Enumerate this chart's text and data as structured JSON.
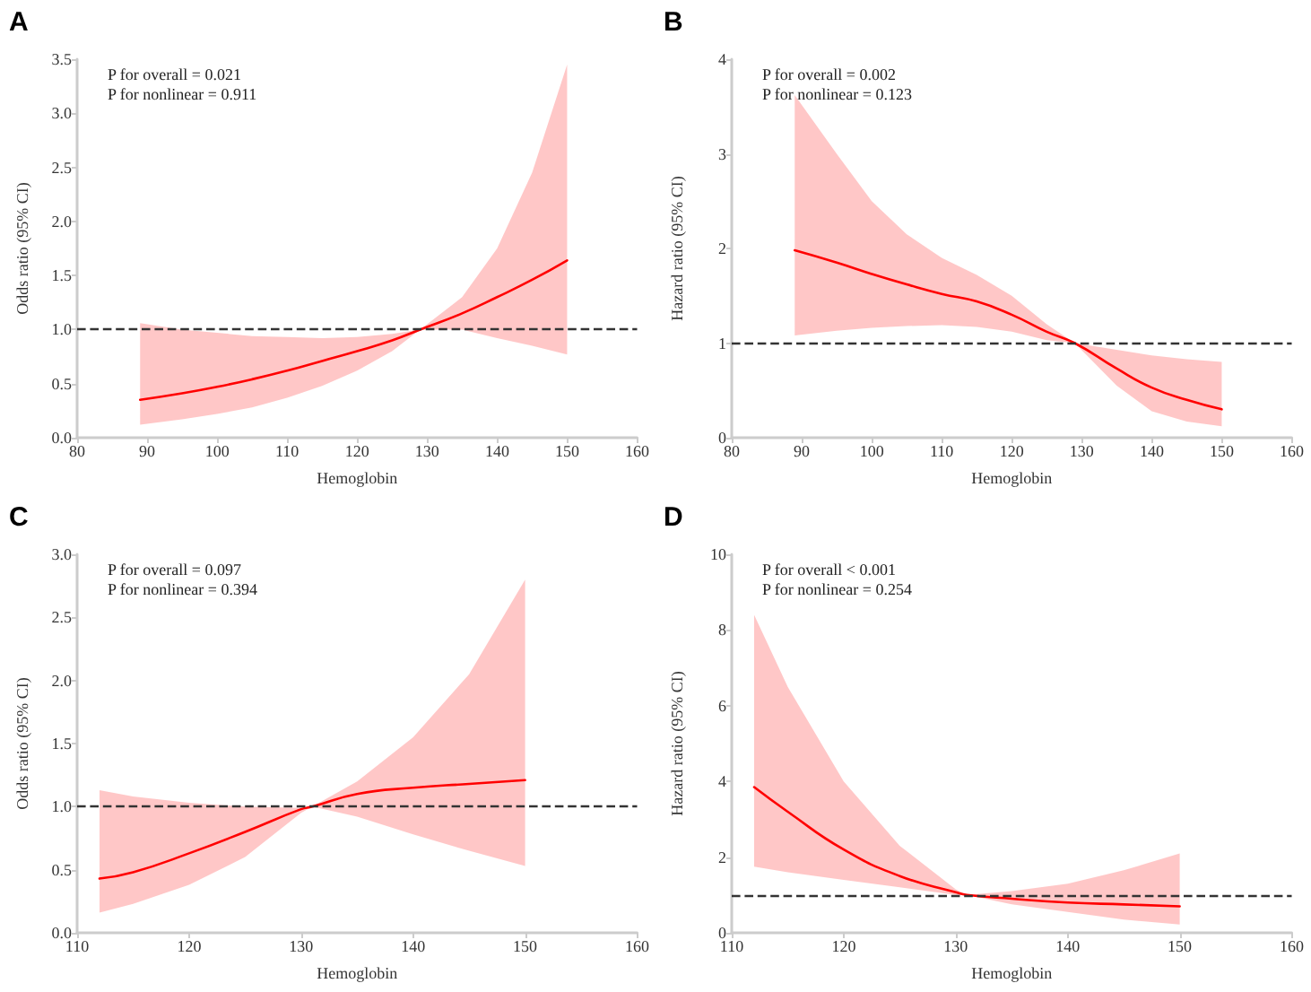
{
  "chart_data": [
    {
      "type": "line",
      "title": "A",
      "xlabel": "Hemoglobin",
      "ylabel": "Odds ratio (95% CI)",
      "xlim": [
        80,
        160
      ],
      "xticks": [
        80,
        90,
        100,
        110,
        120,
        130,
        140,
        150,
        160
      ],
      "ylim": [
        0,
        3.5
      ],
      "yticks": [
        {
          "value": 0,
          "label": "0.0"
        },
        0.5,
        {
          "value": 1,
          "label": "1.0"
        },
        1.5,
        {
          "value": 2,
          "label": "2.0"
        },
        2.5,
        {
          "value": 3,
          "label": "3.0"
        },
        3.5
      ],
      "grid": false,
      "marker": "none",
      "line_style": "solid",
      "annotations": [
        "P for overall = 0.021",
        "P for nonlinear = 0.911"
      ],
      "ref_lines": [
        {
          "axis": "y",
          "value": 1,
          "line_style": "dashed",
          "color": "#333333"
        }
      ],
      "series": [
        {
          "color": "#ff0000",
          "x": [
            89,
            95,
            100,
            105,
            110,
            115,
            120,
            125,
            129,
            135,
            140,
            145,
            150
          ],
          "values": [
            0.35,
            0.41,
            0.47,
            0.54,
            0.62,
            0.71,
            0.8,
            0.9,
            1.0,
            1.15,
            1.3,
            1.46,
            1.64
          ],
          "lower": [
            0.12,
            0.17,
            0.22,
            0.28,
            0.37,
            0.48,
            0.62,
            0.8,
            1.0,
            1.0,
            0.92,
            0.85,
            0.77
          ],
          "upper": [
            1.06,
            1.0,
            0.97,
            0.94,
            0.93,
            0.92,
            0.93,
            0.96,
            1.0,
            1.3,
            1.75,
            2.45,
            3.45
          ]
        }
      ]
    },
    {
      "type": "line",
      "title": "B",
      "xlabel": "Hemoglobin",
      "ylabel": "Hazard ratio (95% CI)",
      "xlim": [
        80,
        160
      ],
      "xticks": [
        80,
        90,
        100,
        110,
        120,
        130,
        140,
        150,
        160
      ],
      "ylim": [
        0,
        4
      ],
      "yticks": [
        0,
        1,
        2,
        3,
        4
      ],
      "grid": false,
      "marker": "none",
      "line_style": "solid",
      "annotations": [
        "P for overall = 0.002",
        "P for nonlinear = 0.123"
      ],
      "ref_lines": [
        {
          "axis": "y",
          "value": 1,
          "line_style": "dashed",
          "color": "#333333"
        }
      ],
      "series": [
        {
          "color": "#ff0000",
          "x": [
            89,
            95,
            100,
            105,
            110,
            115,
            120,
            125,
            129,
            135,
            140,
            145,
            150
          ],
          "values": [
            1.98,
            1.85,
            1.73,
            1.62,
            1.52,
            1.44,
            1.3,
            1.12,
            1.0,
            0.73,
            0.53,
            0.4,
            0.3
          ],
          "lower": [
            1.08,
            1.13,
            1.16,
            1.18,
            1.19,
            1.17,
            1.12,
            1.03,
            1.0,
            0.55,
            0.28,
            0.17,
            0.12
          ],
          "upper": [
            3.62,
            3.0,
            2.5,
            2.15,
            1.9,
            1.72,
            1.5,
            1.2,
            1.0,
            0.93,
            0.87,
            0.83,
            0.8
          ]
        }
      ]
    },
    {
      "type": "line",
      "title": "C",
      "xlabel": "Hemoglobin",
      "ylabel": "Odds ratio (95% CI)",
      "xlim": [
        110,
        160
      ],
      "xticks": [
        110,
        120,
        130,
        140,
        150,
        160
      ],
      "ylim": [
        0,
        3
      ],
      "yticks": [
        {
          "value": 0,
          "label": "0.0"
        },
        0.5,
        {
          "value": 1,
          "label": "1.0"
        },
        1.5,
        {
          "value": 2,
          "label": "2.0"
        },
        2.5,
        {
          "value": 3,
          "label": "3.0"
        }
      ],
      "grid": false,
      "marker": "none",
      "line_style": "solid",
      "annotations": [
        "P for overall = 0.097",
        "P for nonlinear = 0.394"
      ],
      "ref_lines": [
        {
          "axis": "y",
          "value": 1,
          "line_style": "dashed",
          "color": "#333333"
        }
      ],
      "series": [
        {
          "color": "#ff0000",
          "x": [
            112,
            115,
            120,
            125,
            130,
            131,
            135,
            140,
            145,
            150
          ],
          "values": [
            0.43,
            0.48,
            0.63,
            0.8,
            0.98,
            1.0,
            1.1,
            1.15,
            1.18,
            1.21
          ],
          "lower": [
            0.16,
            0.23,
            0.38,
            0.6,
            0.95,
            1.0,
            0.92,
            0.78,
            0.65,
            0.53
          ],
          "upper": [
            1.13,
            1.08,
            1.03,
            1.0,
            0.99,
            1.0,
            1.2,
            1.55,
            2.05,
            2.8
          ]
        }
      ]
    },
    {
      "type": "line",
      "title": "D",
      "xlabel": "Hemoglobin",
      "ylabel": "Hazard ratio (95% CI)",
      "xlim": [
        110,
        160
      ],
      "xticks": [
        110,
        120,
        130,
        140,
        150,
        160
      ],
      "ylim": [
        0,
        10
      ],
      "yticks": [
        0,
        2,
        4,
        6,
        8,
        10
      ],
      "grid": false,
      "marker": "none",
      "line_style": "solid",
      "annotations": [
        "P for overall < 0.001",
        "P for nonlinear = 0.254"
      ],
      "ref_lines": [
        {
          "axis": "y",
          "value": 1,
          "line_style": "dashed",
          "color": "#333333"
        }
      ],
      "series": [
        {
          "color": "#ff0000",
          "x": [
            112,
            115,
            120,
            125,
            130,
            131,
            135,
            140,
            145,
            150
          ],
          "values": [
            3.85,
            3.2,
            2.2,
            1.5,
            1.07,
            1.0,
            0.9,
            0.8,
            0.75,
            0.7
          ],
          "lower": [
            1.75,
            1.6,
            1.4,
            1.2,
            1.0,
            1.0,
            0.75,
            0.55,
            0.35,
            0.22
          ],
          "upper": [
            8.4,
            6.5,
            4.0,
            2.3,
            1.15,
            1.0,
            1.1,
            1.3,
            1.65,
            2.1
          ]
        }
      ]
    }
  ]
}
